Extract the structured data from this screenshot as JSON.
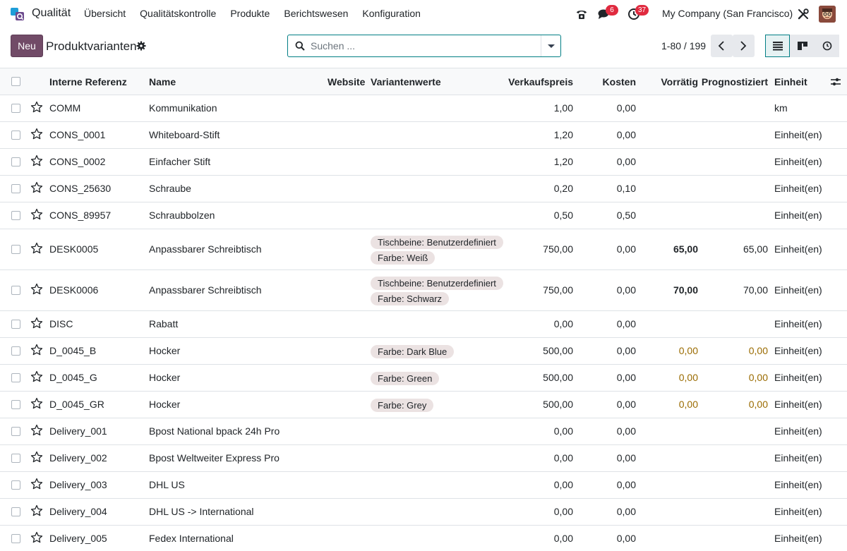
{
  "navbar": {
    "app_name": "Qualität",
    "menu": [
      "Übersicht",
      "Qualitätskontrolle",
      "Produkte",
      "Berichtswesen",
      "Konfiguration"
    ],
    "messages_badge": "6",
    "activities_badge": "37",
    "company": "My Company (San Francisco)"
  },
  "control": {
    "new_label": "Neu",
    "title": "Produktvarianten",
    "search_placeholder": "Suchen ...",
    "pager": "1-80 / 199"
  },
  "table": {
    "headers": {
      "ref": "Interne Referenz",
      "name": "Name",
      "website": "Website",
      "variants": "Variantenwerte",
      "price": "Verkaufspreis",
      "cost": "Kosten",
      "onhand": "Vorrätig",
      "forecast": "Prognostiziert",
      "uom": "Einheit"
    },
    "rows": [
      {
        "ref": "COMM",
        "name": "Kommunikation",
        "tags": [],
        "price": "1,00",
        "cost": "0,00",
        "onhand": "",
        "forecast": "",
        "uom": "km",
        "warn": false
      },
      {
        "ref": "CONS_0001",
        "name": "Whiteboard-Stift",
        "tags": [],
        "price": "1,20",
        "cost": "0,00",
        "onhand": "",
        "forecast": "",
        "uom": "Einheit(en)",
        "warn": false
      },
      {
        "ref": "CONS_0002",
        "name": "Einfacher Stift",
        "tags": [],
        "price": "1,20",
        "cost": "0,00",
        "onhand": "",
        "forecast": "",
        "uom": "Einheit(en)",
        "warn": false
      },
      {
        "ref": "CONS_25630",
        "name": "Schraube",
        "tags": [],
        "price": "0,20",
        "cost": "0,10",
        "onhand": "",
        "forecast": "",
        "uom": "Einheit(en)",
        "warn": false
      },
      {
        "ref": "CONS_89957",
        "name": "Schraubbolzen",
        "tags": [],
        "price": "0,50",
        "cost": "0,50",
        "onhand": "",
        "forecast": "",
        "uom": "Einheit(en)",
        "warn": false
      },
      {
        "ref": "DESK0005",
        "name": "Anpassbarer Schreibtisch",
        "tags": [
          "Tischbeine: Benutzerdefiniert",
          "Farbe: Weiß"
        ],
        "price": "750,00",
        "cost": "0,00",
        "onhand": "65,00",
        "forecast": "65,00",
        "uom": "Einheit(en)",
        "warn": false
      },
      {
        "ref": "DESK0006",
        "name": "Anpassbarer Schreibtisch",
        "tags": [
          "Tischbeine: Benutzerdefiniert",
          "Farbe: Schwarz"
        ],
        "price": "750,00",
        "cost": "0,00",
        "onhand": "70,00",
        "forecast": "70,00",
        "uom": "Einheit(en)",
        "warn": false
      },
      {
        "ref": "DISC",
        "name": "Rabatt",
        "tags": [],
        "price": "0,00",
        "cost": "0,00",
        "onhand": "",
        "forecast": "",
        "uom": "Einheit(en)",
        "warn": false
      },
      {
        "ref": "D_0045_B",
        "name": "Hocker",
        "tags": [
          "Farbe: Dark Blue"
        ],
        "price": "500,00",
        "cost": "0,00",
        "onhand": "0,00",
        "forecast": "0,00",
        "uom": "Einheit(en)",
        "warn": true
      },
      {
        "ref": "D_0045_G",
        "name": "Hocker",
        "tags": [
          "Farbe: Green"
        ],
        "price": "500,00",
        "cost": "0,00",
        "onhand": "0,00",
        "forecast": "0,00",
        "uom": "Einheit(en)",
        "warn": true
      },
      {
        "ref": "D_0045_GR",
        "name": "Hocker",
        "tags": [
          "Farbe: Grey"
        ],
        "price": "500,00",
        "cost": "0,00",
        "onhand": "0,00",
        "forecast": "0,00",
        "uom": "Einheit(en)",
        "warn": true
      },
      {
        "ref": "Delivery_001",
        "name": "Bpost National bpack 24h Pro",
        "tags": [],
        "price": "0,00",
        "cost": "0,00",
        "onhand": "",
        "forecast": "",
        "uom": "Einheit(en)",
        "warn": false
      },
      {
        "ref": "Delivery_002",
        "name": "Bpost Weltweiter Express Pro",
        "tags": [],
        "price": "0,00",
        "cost": "0,00",
        "onhand": "",
        "forecast": "",
        "uom": "Einheit(en)",
        "warn": false
      },
      {
        "ref": "Delivery_003",
        "name": "DHL US",
        "tags": [],
        "price": "0,00",
        "cost": "0,00",
        "onhand": "",
        "forecast": "",
        "uom": "Einheit(en)",
        "warn": false
      },
      {
        "ref": "Delivery_004",
        "name": "DHL US -> International",
        "tags": [],
        "price": "0,00",
        "cost": "0,00",
        "onhand": "",
        "forecast": "",
        "uom": "Einheit(en)",
        "warn": false
      },
      {
        "ref": "Delivery_005",
        "name": "Fedex International",
        "tags": [],
        "price": "0,00",
        "cost": "0,00",
        "onhand": "",
        "forecast": "",
        "uom": "Einheit(en)",
        "warn": false
      }
    ]
  },
  "colors": {
    "brand": "#714b67",
    "accent": "#017e84",
    "badge": "#e02a3f",
    "warning_text": "#9a6b00",
    "tag_bg": "#ebe2e2"
  },
  "icons": {
    "app": "quality-app-logo",
    "phone": "phone-icon",
    "messages": "chat-icon",
    "activities": "clock-icon",
    "debug": "tools-icon",
    "gear": "gear-icon",
    "search": "search-icon",
    "star": "star-icon"
  }
}
